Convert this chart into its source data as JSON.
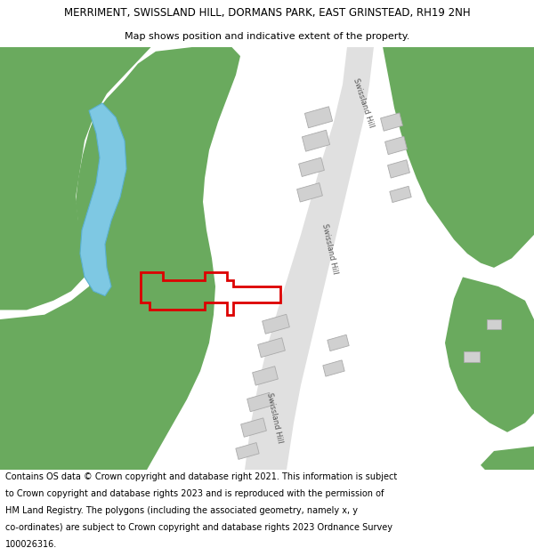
{
  "title_line1": "MERRIMENT, SWISSLAND HILL, DORMANS PARK, EAST GRINSTEAD, RH19 2NH",
  "title_line2": "Map shows position and indicative extent of the property.",
  "footer_text": "Contains OS data © Crown copyright and database right 2021. This information is subject to Crown copyright and database rights 2023 and is reproduced with the permission of HM Land Registry. The polygons (including the associated geometry, namely x, y co-ordinates) are subject to Crown copyright and database rights 2023 Ordnance Survey 100026316.",
  "background_color": "#ffffff",
  "map_bg_color": "#f2f2f2",
  "green_color": "#6aaa5e",
  "road_color": "#e0e0e0",
  "road_stroke": "#c0c0c0",
  "blue_color": "#7ec8e3",
  "blue_stroke": "#5ab0d0",
  "building_color": "#d0d0d0",
  "building_stroke": "#aaaaaa",
  "red_outline_color": "#dd0000",
  "title_fontsize": 8.5,
  "subtitle_fontsize": 8.0,
  "footer_fontsize": 7.0,
  "road_label_color": "#555555",
  "road_label_size": 6.0
}
